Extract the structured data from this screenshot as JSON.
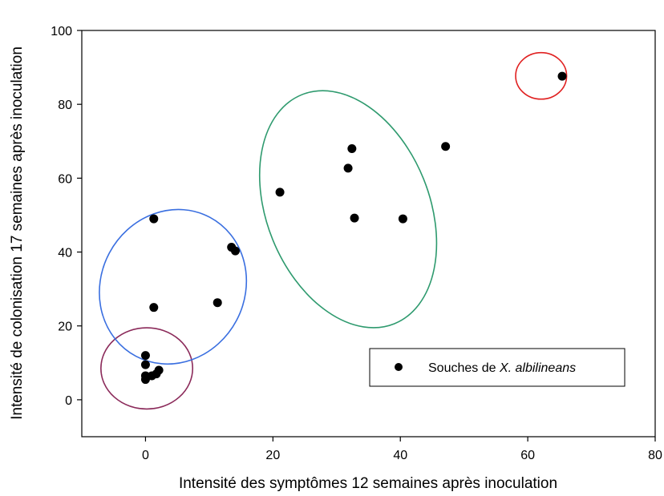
{
  "chart_data": {
    "type": "scatter",
    "title": "",
    "xlabel": "Intensité des symptômes 12 semaines après inoculation",
    "ylabel": "Intensité de colonisation 17 semaines après inoculation",
    "xlim": [
      -10,
      80
    ],
    "ylim": [
      -10,
      100
    ],
    "xticks": [
      0,
      20,
      40,
      60,
      80
    ],
    "yticks": [
      0,
      20,
      40,
      60,
      80,
      100
    ],
    "grid": false,
    "legend": {
      "placement": "bottom-right",
      "prefix": "Souches de ",
      "species": "X. albilineans"
    },
    "series": [
      {
        "name": "Souches de X. albilineans",
        "color": "#000000",
        "points": [
          {
            "x": 0,
            "y": 12
          },
          {
            "x": 0,
            "y": 9.5
          },
          {
            "x": 0,
            "y": 6.5
          },
          {
            "x": 0,
            "y": 5.5
          },
          {
            "x": 1,
            "y": 6.5
          },
          {
            "x": 1.7,
            "y": 7
          },
          {
            "x": 2.1,
            "y": 8
          },
          {
            "x": 1.3,
            "y": 25
          },
          {
            "x": 1.3,
            "y": 49
          },
          {
            "x": 11.3,
            "y": 26.3
          },
          {
            "x": 13.5,
            "y": 41.3
          },
          {
            "x": 14.1,
            "y": 40.3
          },
          {
            "x": 21.1,
            "y": 56.2
          },
          {
            "x": 31.8,
            "y": 62.7
          },
          {
            "x": 32.4,
            "y": 68
          },
          {
            "x": 32.8,
            "y": 49.2
          },
          {
            "x": 40.4,
            "y": 49
          },
          {
            "x": 47.1,
            "y": 68.6
          },
          {
            "x": 65.4,
            "y": 87.6
          }
        ]
      }
    ],
    "groups": [
      {
        "color": "#8b2a5a",
        "cx": 0.2,
        "cy": 8.5,
        "rx": 7.2,
        "ry": 11,
        "angle": 0
      },
      {
        "color": "#3a6fe0",
        "cx": 4.3,
        "cy": 30.6,
        "rx": 11.3,
        "ry": 21.3,
        "angle": 28
      },
      {
        "color": "#2e9a6e",
        "cx": 31.8,
        "cy": 51.6,
        "rx": 19.4,
        "ry": 22,
        "angle": 68
      },
      {
        "color": "#e02020",
        "cx": 62.1,
        "cy": 87.7,
        "rx": 4,
        "ry": 6.3,
        "angle": 0
      }
    ]
  }
}
